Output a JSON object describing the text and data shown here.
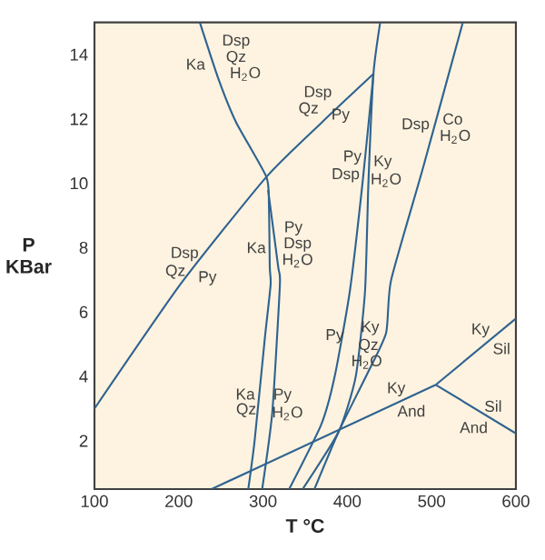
{
  "chart_data": {
    "type": "line",
    "xlabel": "T °C",
    "ylabel": "P KBar",
    "xlim": [
      100,
      600
    ],
    "ylim": [
      0.5,
      15
    ],
    "xticks": [
      100,
      200,
      300,
      400,
      500,
      600
    ],
    "yticks": [
      2,
      4,
      6,
      8,
      10,
      12,
      14
    ],
    "series": [
      {
        "color": "#2f6390",
        "x": [
          100,
          203,
          304,
          370,
          431
        ],
        "values": [
          3.0,
          6.9,
          10.2,
          11.9,
          13.4
        ]
      },
      {
        "color": "#2f6390",
        "x": [
          225,
          247,
          268,
          304,
          307,
          308,
          309,
          302,
          290,
          282.5
        ],
        "values": [
          15,
          13.25,
          11.9,
          10.2,
          9.3,
          7.4,
          6.85,
          5.15,
          2,
          0.5
        ]
      },
      {
        "color": "#2f6390",
        "x": [
          306,
          318,
          320,
          311,
          299
        ],
        "values": [
          9.8,
          7.4,
          6.85,
          2.9,
          0.5
        ]
      },
      {
        "color": "#2f6390",
        "x": [
          439,
          431,
          425,
          421,
          410,
          390,
          347
        ],
        "values": [
          15,
          13.4,
          10,
          6.65,
          4,
          2.3,
          0.5
        ]
      },
      {
        "color": "#2f6390",
        "x": [
          431,
          418,
          403,
          385,
          369,
          331
        ],
        "values": [
          13.4,
          10,
          6.65,
          4,
          2.5,
          0.5
        ]
      },
      {
        "color": "#2f6390",
        "x": [
          537,
          490,
          452,
          446,
          424,
          390,
          361
        ],
        "values": [
          15,
          10.5,
          7,
          5.35,
          4.1,
          2.3,
          0.5
        ]
      },
      {
        "color": "#2f6390",
        "x": [
          239,
          505
        ],
        "values": [
          0.5,
          3.74
        ]
      },
      {
        "color": "#2f6390",
        "x": [
          505,
          600
        ],
        "values": [
          3.74,
          5.8
        ]
      },
      {
        "color": "#2f6390",
        "x": [
          505,
          600
        ],
        "values": [
          3.74,
          2.23
        ]
      }
    ],
    "annotations": [
      "Dsp",
      "Qz",
      "H$_{2}$O",
      "Ka",
      "Dsp",
      "Qz",
      "Py",
      "Dsp",
      "Co",
      "H$_{2}$O",
      "Py",
      "Dsp",
      "Ky",
      "H$_{2}$O",
      "Py",
      "Dsp",
      "H$_{2}$O",
      "Ka",
      "Dsp",
      "Qz",
      "Py",
      "Py",
      "Ky",
      "Qz",
      "H$_{2}$O",
      "Ka",
      "Qz",
      "Py",
      "H$_{2}$O",
      "Ky",
      "And",
      "Ky",
      "Sil",
      "Sil",
      "And"
    ]
  }
}
